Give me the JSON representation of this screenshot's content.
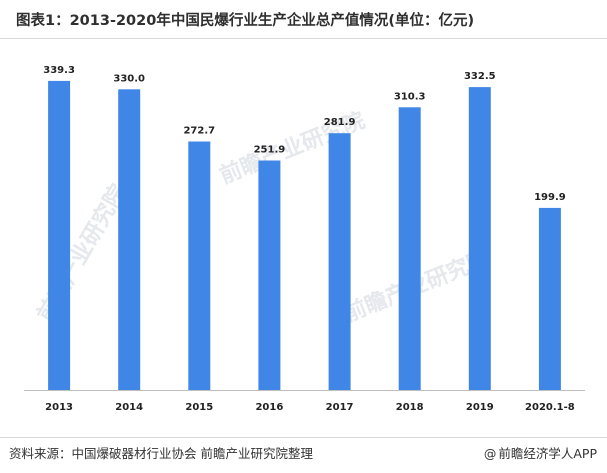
{
  "chart_data": {
    "type": "bar",
    "title": "图表1：2013-2020年中国民爆行业生产企业总产值情况(单位：亿元)",
    "categories": [
      "2013",
      "2014",
      "2015",
      "2016",
      "2017",
      "2018",
      "2019",
      "2020.1-8"
    ],
    "values": [
      339.3,
      330.0,
      272.7,
      251.9,
      281.9,
      310.3,
      332.5,
      199.9
    ],
    "value_labels": [
      "339.3",
      "330.0",
      "272.7",
      "251.9",
      "281.9",
      "310.3",
      "332.5",
      "199.9"
    ],
    "xlabel": "",
    "ylabel": "",
    "ylim": [
      0,
      360
    ],
    "grid": false,
    "y_axis_visible": false,
    "bar_color": "#3f86e6"
  },
  "footer": {
    "source": "资料来源：中国爆破器材行业协会 前瞻产业研究院整理",
    "credit_symbol": "@",
    "credit": "前瞻经济学人APP"
  },
  "watermark": {
    "text": "前瞻产业研究院"
  }
}
